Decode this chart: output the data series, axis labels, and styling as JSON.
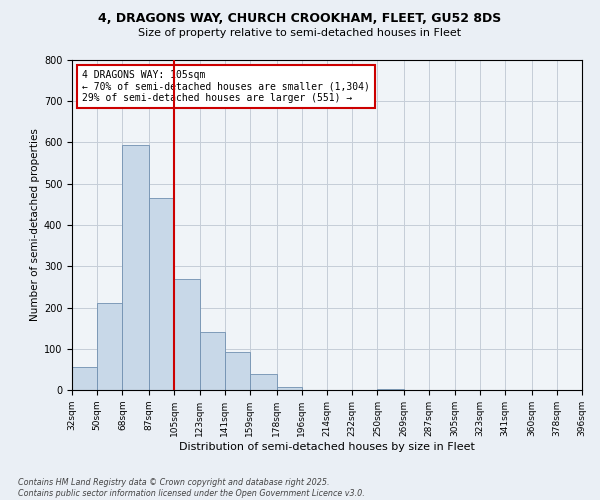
{
  "title_line1": "4, DRAGONS WAY, CHURCH CROOKHAM, FLEET, GU52 8DS",
  "title_line2": "Size of property relative to semi-detached houses in Fleet",
  "xlabel": "Distribution of semi-detached houses by size in Fleet",
  "ylabel": "Number of semi-detached properties",
  "footer": "Contains HM Land Registry data © Crown copyright and database right 2025.\nContains public sector information licensed under the Open Government Licence v3.0.",
  "annotation_title": "4 DRAGONS WAY: 105sqm",
  "annotation_line1": "← 70% of semi-detached houses are smaller (1,304)",
  "annotation_line2": "29% of semi-detached houses are larger (551) →",
  "vline_x": 105,
  "bar_edges": [
    32,
    50,
    68,
    87,
    105,
    123,
    141,
    159,
    178,
    196,
    214,
    232,
    250,
    269,
    287,
    305,
    323,
    341,
    360,
    378,
    396
  ],
  "bar_heights": [
    55,
    210,
    595,
    465,
    270,
    140,
    91,
    40,
    7,
    0,
    0,
    0,
    3,
    0,
    0,
    0,
    0,
    0,
    0,
    0
  ],
  "bar_color": "#c8d8e8",
  "bar_edge_color": "#7090b0",
  "vline_color": "#cc0000",
  "bg_color": "#eaeff5",
  "plot_bg_color": "#f0f4f8",
  "grid_color": "#c5cdd8",
  "ylim": [
    0,
    800
  ],
  "yticks": [
    0,
    100,
    200,
    300,
    400,
    500,
    600,
    700,
    800
  ]
}
